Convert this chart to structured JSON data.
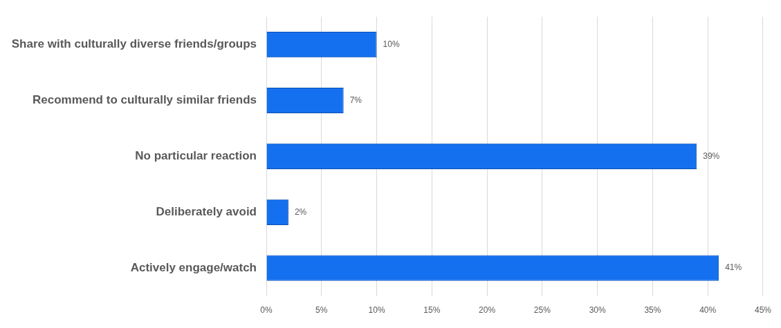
{
  "chart_data": {
    "type": "bar",
    "orientation": "horizontal",
    "categories": [
      "Share with culturally diverse friends/groups",
      "Recommend to culturally similar friends",
      "No particular reaction",
      "Deliberately avoid",
      "Actively engage/watch"
    ],
    "values": [
      10,
      7,
      39,
      2,
      41
    ],
    "color": "#1570ef",
    "value_labels": [
      "10%",
      "7%",
      "39%",
      "2%",
      "41%"
    ],
    "xlim": [
      0,
      45
    ],
    "xticks": [
      {
        "value": 0,
        "label": "0%"
      },
      {
        "value": 5,
        "label": "5%"
      },
      {
        "value": 10,
        "label": "10%"
      },
      {
        "value": 15,
        "label": "15%"
      },
      {
        "value": 20,
        "label": "20%"
      },
      {
        "value": 25,
        "label": "25%"
      },
      {
        "value": 30,
        "label": "30%"
      },
      {
        "value": 35,
        "label": "35%"
      },
      {
        "value": 40,
        "label": "40%"
      },
      {
        "value": 45,
        "label": "45%"
      }
    ],
    "grid": "x"
  }
}
